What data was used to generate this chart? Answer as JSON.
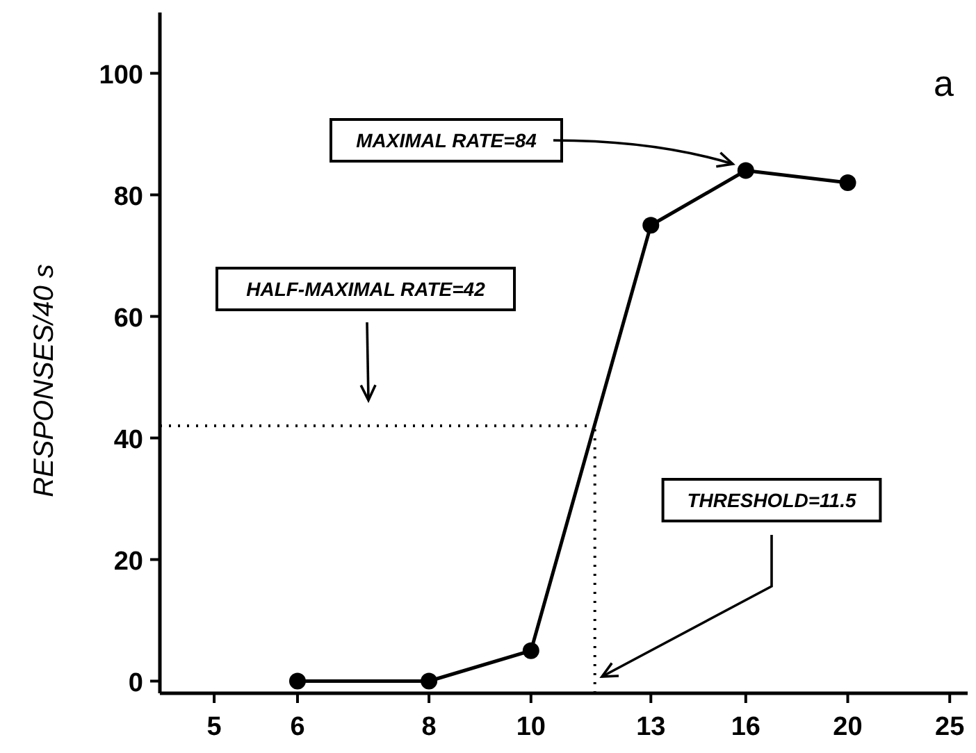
{
  "chart_data": {
    "type": "line",
    "ylabel": "RESPONSES/40 s",
    "log": "x",
    "x": [
      6,
      8,
      10,
      13,
      16,
      20
    ],
    "series": [
      {
        "color": "#000000",
        "values": [
          0,
          0,
          5,
          75,
          84,
          82
        ]
      }
    ],
    "marker": "circle",
    "line_style": "solid",
    "grid": false,
    "xlim": [
      4.44,
      26
    ],
    "xticks": [
      5,
      6,
      8,
      10,
      13,
      16,
      20,
      25
    ],
    "ylim": [
      -2,
      110
    ],
    "yticks": [
      0,
      20,
      40,
      60,
      80,
      100
    ],
    "ref_lines": [
      {
        "axis": "y",
        "value": 42,
        "line_style": "dotted"
      },
      {
        "axis": "x",
        "value": 11.5,
        "line_style": "dotted"
      }
    ],
    "annotations": [
      "MAXIMAL RATE=84",
      "HALF-MAXIMAL RATE=42",
      "THRESHOLD=11.5",
      "a"
    ]
  }
}
